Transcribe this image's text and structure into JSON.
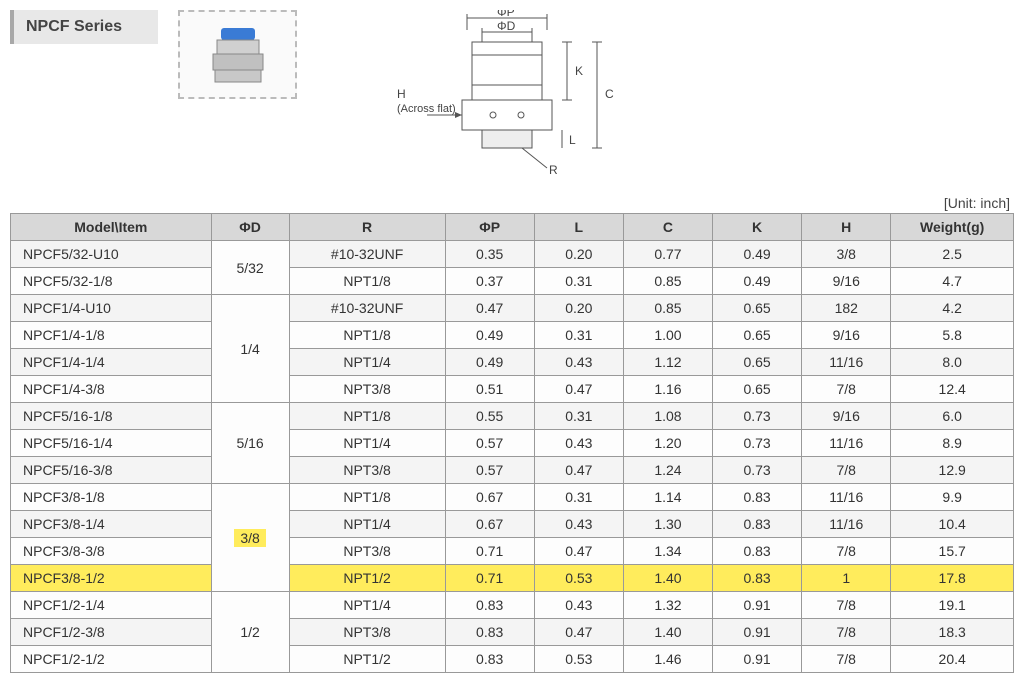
{
  "title": "NPCF Series",
  "unit_label": "[Unit: inch]",
  "diagram": {
    "labels": {
      "phi_p": "ΦP",
      "phi_d": "ΦD",
      "h": "H",
      "across_flat": "(Across flat)",
      "k": "K",
      "c": "C",
      "l": "L",
      "r": "R"
    },
    "line_color": "#555",
    "text_color": "#444"
  },
  "table": {
    "columns": [
      "Model\\Item",
      "ΦD",
      "R",
      "ΦP",
      "L",
      "C",
      "K",
      "H",
      "Weight(g)"
    ],
    "col_widths": [
      "180px",
      "70px",
      "140px",
      "80px",
      "80px",
      "80px",
      "80px",
      "80px",
      "110px"
    ],
    "groups": [
      {
        "phi_d": "5/32",
        "highlight_phi_d": false,
        "rows": [
          {
            "model": "NPCF5/32-U10",
            "r": "#10-32UNF",
            "p": "0.35",
            "l": "0.20",
            "c": "0.77",
            "k": "0.49",
            "h": "3/8",
            "w": "2.5",
            "hl": false
          },
          {
            "model": "NPCF5/32-1/8",
            "r": "NPT1/8",
            "p": "0.37",
            "l": "0.31",
            "c": "0.85",
            "k": "0.49",
            "h": "9/16",
            "w": "4.7",
            "hl": false
          }
        ]
      },
      {
        "phi_d": "1/4",
        "highlight_phi_d": false,
        "rows": [
          {
            "model": "NPCF1/4-U10",
            "r": "#10-32UNF",
            "p": "0.47",
            "l": "0.20",
            "c": "0.85",
            "k": "0.65",
            "h": "182",
            "w": "4.2",
            "hl": false
          },
          {
            "model": "NPCF1/4-1/8",
            "r": "NPT1/8",
            "p": "0.49",
            "l": "0.31",
            "c": "1.00",
            "k": "0.65",
            "h": "9/16",
            "w": "5.8",
            "hl": false
          },
          {
            "model": "NPCF1/4-1/4",
            "r": "NPT1/4",
            "p": "0.49",
            "l": "0.43",
            "c": "1.12",
            "k": "0.65",
            "h": "11/16",
            "w": "8.0",
            "hl": false
          },
          {
            "model": "NPCF1/4-3/8",
            "r": "NPT3/8",
            "p": "0.51",
            "l": "0.47",
            "c": "1.16",
            "k": "0.65",
            "h": "7/8",
            "w": "12.4",
            "hl": false
          }
        ]
      },
      {
        "phi_d": "5/16",
        "highlight_phi_d": false,
        "rows": [
          {
            "model": "NPCF5/16-1/8",
            "r": "NPT1/8",
            "p": "0.55",
            "l": "0.31",
            "c": "1.08",
            "k": "0.73",
            "h": "9/16",
            "w": "6.0",
            "hl": false
          },
          {
            "model": "NPCF5/16-1/4",
            "r": "NPT1/4",
            "p": "0.57",
            "l": "0.43",
            "c": "1.20",
            "k": "0.73",
            "h": "11/16",
            "w": "8.9",
            "hl": false
          },
          {
            "model": "NPCF5/16-3/8",
            "r": "NPT3/8",
            "p": "0.57",
            "l": "0.47",
            "c": "1.24",
            "k": "0.73",
            "h": "7/8",
            "w": "12.9",
            "hl": false
          }
        ]
      },
      {
        "phi_d": "3/8",
        "highlight_phi_d": true,
        "rows": [
          {
            "model": "NPCF3/8-1/8",
            "r": "NPT1/8",
            "p": "0.67",
            "l": "0.31",
            "c": "1.14",
            "k": "0.83",
            "h": "11/16",
            "w": "9.9",
            "hl": false
          },
          {
            "model": "NPCF3/8-1/4",
            "r": "NPT1/4",
            "p": "0.67",
            "l": "0.43",
            "c": "1.30",
            "k": "0.83",
            "h": "11/16",
            "w": "10.4",
            "hl": false
          },
          {
            "model": "NPCF3/8-3/8",
            "r": "NPT3/8",
            "p": "0.71",
            "l": "0.47",
            "c": "1.34",
            "k": "0.83",
            "h": "7/8",
            "w": "15.7",
            "hl": false
          },
          {
            "model": "NPCF3/8-1/2",
            "r": "NPT1/2",
            "p": "0.71",
            "l": "0.53",
            "c": "1.40",
            "k": "0.83",
            "h": "1",
            "w": "17.8",
            "hl": true
          }
        ]
      },
      {
        "phi_d": "1/2",
        "highlight_phi_d": false,
        "rows": [
          {
            "model": "NPCF1/2-1/4",
            "r": "NPT1/4",
            "p": "0.83",
            "l": "0.43",
            "c": "1.32",
            "k": "0.91",
            "h": "7/8",
            "w": "19.1",
            "hl": false
          },
          {
            "model": "NPCF1/2-3/8",
            "r": "NPT3/8",
            "p": "0.83",
            "l": "0.47",
            "c": "1.40",
            "k": "0.91",
            "h": "7/8",
            "w": "18.3",
            "hl": false
          },
          {
            "model": "NPCF1/2-1/2",
            "r": "NPT1/2",
            "p": "0.83",
            "l": "0.53",
            "c": "1.46",
            "k": "0.91",
            "h": "7/8",
            "w": "20.4",
            "hl": false
          }
        ]
      }
    ]
  }
}
